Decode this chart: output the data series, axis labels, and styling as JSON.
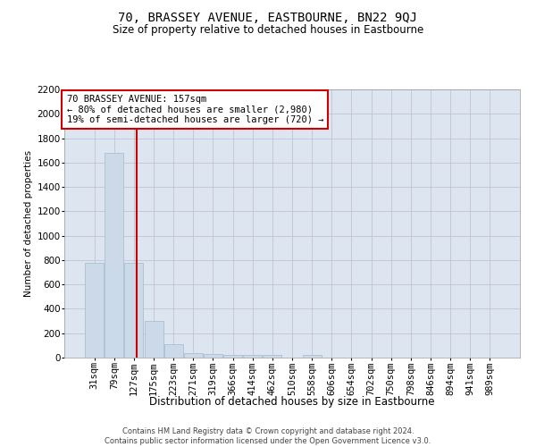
{
  "title": "70, BRASSEY AVENUE, EASTBOURNE, BN22 9QJ",
  "subtitle": "Size of property relative to detached houses in Eastbourne",
  "xlabel": "Distribution of detached houses by size in Eastbourne",
  "ylabel": "Number of detached properties",
  "categories": [
    "31sqm",
    "79sqm",
    "127sqm",
    "175sqm",
    "223sqm",
    "271sqm",
    "319sqm",
    "366sqm",
    "414sqm",
    "462sqm",
    "510sqm",
    "558sqm",
    "606sqm",
    "654sqm",
    "702sqm",
    "750sqm",
    "798sqm",
    "846sqm",
    "894sqm",
    "941sqm",
    "989sqm"
  ],
  "values": [
    780,
    1680,
    780,
    300,
    110,
    40,
    30,
    20,
    20,
    20,
    0,
    20,
    0,
    0,
    0,
    0,
    0,
    0,
    0,
    0,
    0
  ],
  "bar_color": "#ccd9e8",
  "bar_edge_color": "#aabfcf",
  "grid_color": "#bbbbcc",
  "bg_color": "#dde6f0",
  "red_line_x": 2.12,
  "red_line_color": "#cc0000",
  "annotation_box_text": "70 BRASSEY AVENUE: 157sqm\n← 80% of detached houses are smaller (2,980)\n19% of semi-detached houses are larger (720) →",
  "annotation_box_color": "#cc0000",
  "footer_line1": "Contains HM Land Registry data © Crown copyright and database right 2024.",
  "footer_line2": "Contains public sector information licensed under the Open Government Licence v3.0.",
  "ylim": [
    0,
    2200
  ],
  "yticks": [
    0,
    200,
    400,
    600,
    800,
    1000,
    1200,
    1400,
    1600,
    1800,
    2000,
    2200
  ],
  "title_fontsize": 10,
  "subtitle_fontsize": 8.5,
  "ylabel_fontsize": 7.5,
  "xlabel_fontsize": 8.5,
  "tick_fontsize": 7.5,
  "annot_fontsize": 7.5,
  "footer_fontsize": 6.0
}
